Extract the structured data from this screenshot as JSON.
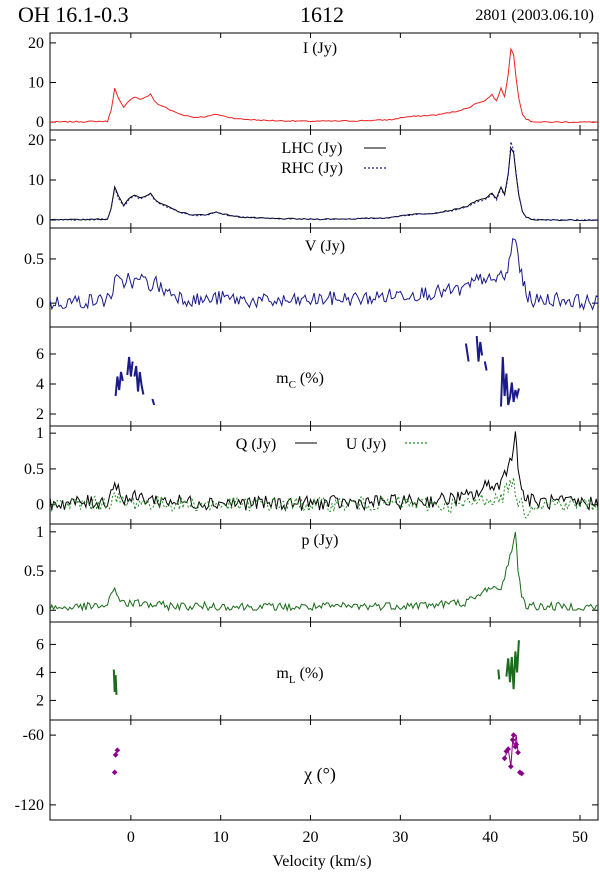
{
  "header": {
    "source": "OH 16.1-0.3",
    "frequency": "1612",
    "observation": "2801 (2003.06.10)"
  },
  "colors": {
    "I": "#ee2222",
    "lhc": "#000000",
    "rhc": "#1a1a8c",
    "V": "#1a1a8c",
    "mC": "#1a1a8c",
    "Q": "#000000",
    "U": "#228b22",
    "p": "#1a6b1a",
    "mL": "#1a6b1a",
    "chi": "#8b008b"
  },
  "chart_data": [
    {
      "type": "line",
      "panel": "I",
      "label": "I (Jy)",
      "xlim": [
        -9,
        52
      ],
      "ylim": [
        -2,
        22.5
      ],
      "yticks": [
        0,
        10,
        20
      ],
      "series": [
        {
          "key": "I",
          "x": [
            -9,
            -2.6,
            -2.2,
            -1.8,
            -1.4,
            -0.8,
            -0.2,
            0.4,
            1.0,
            1.6,
            2.2,
            2.6,
            3.0,
            3.6,
            4.4,
            5.5,
            7,
            8.5,
            9.5,
            10.5,
            12,
            15,
            20,
            25,
            29,
            30.5,
            32,
            34,
            36,
            37.5,
            38.5,
            39.5,
            40.2,
            40.7,
            41.2,
            41.6,
            42.0,
            42.3,
            42.6,
            42.9,
            43.2,
            43.6,
            44.0,
            44.5,
            45.5,
            52
          ],
          "y": [
            0,
            0.2,
            3,
            8.5,
            6,
            3.6,
            5.5,
            6.4,
            5.8,
            6.2,
            7,
            5.5,
            4.5,
            4,
            3,
            2,
            1.2,
            1.4,
            2,
            1.4,
            0.8,
            0.4,
            0.2,
            0.3,
            0.6,
            1.3,
            1.5,
            1.8,
            2.6,
            3.5,
            4.8,
            5.5,
            7,
            5.3,
            8.5,
            6.5,
            12,
            18.5,
            17,
            11,
            6,
            2,
            0.8,
            0.2,
            0,
            0
          ]
        }
      ]
    },
    {
      "type": "line",
      "panel": "LHC/RHC",
      "labels": [
        "LHC (Jy)",
        "RHC (Jy)"
      ],
      "xlim": [
        -9,
        52
      ],
      "ylim": [
        -2,
        22.5
      ],
      "yticks": [
        0,
        10,
        20
      ],
      "series": [
        {
          "name": "LHC (Jy)",
          "key": "lhc",
          "x": [
            -9,
            -2.6,
            -2.2,
            -1.8,
            -1.4,
            -0.8,
            -0.2,
            0.4,
            1.0,
            1.6,
            2.2,
            2.6,
            3.0,
            3.6,
            4.4,
            5.5,
            7,
            8.5,
            9.5,
            10.5,
            12,
            15,
            20,
            25,
            29,
            30.5,
            32,
            34,
            36,
            37.5,
            38.5,
            39.5,
            40.2,
            40.7,
            41.2,
            41.6,
            42.0,
            42.3,
            42.6,
            42.9,
            43.2,
            43.6,
            44.0,
            44.5,
            45.5,
            52
          ],
          "y": [
            0,
            0.2,
            3,
            8.3,
            6,
            3.6,
            5.4,
            6.3,
            5.6,
            6.0,
            6.8,
            5.4,
            4.4,
            3.9,
            3,
            2,
            1.2,
            1.4,
            2,
            1.4,
            0.8,
            0.4,
            0.2,
            0.3,
            0.6,
            1.3,
            1.5,
            1.8,
            2.6,
            3.5,
            4.8,
            5.4,
            6.8,
            5.2,
            8.3,
            6.4,
            11.5,
            18,
            16.8,
            11,
            6,
            2,
            0.8,
            0.2,
            0,
            0
          ]
        },
        {
          "name": "RHC (Jy)",
          "key": "rhc",
          "x": [
            -9,
            -2.6,
            -2.2,
            -1.8,
            -1.4,
            -0.8,
            -0.2,
            0.4,
            1.0,
            1.6,
            2.2,
            2.6,
            3.0,
            3.6,
            4.4,
            5.5,
            7,
            8.5,
            9.5,
            10.5,
            12,
            15,
            20,
            25,
            29,
            30.5,
            32,
            34,
            36,
            37.5,
            38.5,
            39.5,
            40.2,
            40.7,
            41.2,
            41.6,
            42.0,
            42.3,
            42.6,
            42.9,
            43.2,
            43.6,
            44.0,
            44.5,
            45.5,
            52
          ],
          "y": [
            0,
            0.2,
            2.8,
            7.8,
            5.6,
            3.4,
            5.1,
            6.0,
            5.3,
            5.8,
            6.6,
            5.2,
            4.2,
            3.8,
            2.9,
            1.9,
            1.1,
            1.3,
            1.9,
            1.3,
            0.8,
            0.4,
            0.2,
            0.3,
            0.6,
            1.2,
            1.4,
            1.7,
            2.5,
            3.3,
            4.5,
            5.1,
            6.4,
            5.0,
            7.9,
            6.1,
            11,
            19.5,
            17.5,
            11.5,
            6.2,
            2.1,
            0.8,
            0.2,
            0,
            0
          ]
        }
      ]
    },
    {
      "type": "line",
      "panel": "V",
      "label": "V (Jy)",
      "xlim": [
        -9,
        52
      ],
      "ylim": [
        -0.27,
        0.85
      ],
      "yticks": [
        0,
        0.5
      ],
      "series": [
        {
          "key": "V",
          "x": [
            -9,
            -6,
            -3,
            -2.2,
            -1.6,
            -1,
            -0.3,
            0.4,
            1.2,
            2,
            2.8,
            3.5,
            4.5,
            6,
            8,
            10,
            14,
            18,
            22,
            26,
            30,
            34,
            37,
            38.5,
            39.5,
            40.3,
            41,
            41.6,
            42.1,
            42.5,
            42.8,
            43.1,
            43.5,
            44,
            45,
            47,
            52
          ],
          "y": [
            0,
            0.02,
            0.03,
            0.1,
            0.27,
            0.2,
            0.3,
            0.22,
            0.28,
            0.2,
            0.23,
            0.15,
            0.12,
            0.05,
            0.03,
            0.06,
            0.02,
            0.02,
            0.05,
            0.05,
            0.1,
            0.12,
            0.15,
            0.25,
            0.3,
            0.2,
            0.35,
            0.25,
            0.45,
            0.7,
            0.72,
            0.55,
            0.3,
            0.1,
            0.02,
            0.05,
            0
          ]
        }
      ]
    },
    {
      "type": "line",
      "panel": "mC",
      "label": "mC (%)",
      "xlim": [
        -9,
        52
      ],
      "ylim": [
        1.2,
        7.8
      ],
      "yticks": [
        2,
        4,
        6
      ],
      "series": [
        {
          "key": "mC",
          "segments": [
            {
              "x": [
                -1.7,
                -1.5,
                -1.3,
                -1.1,
                -0.9
              ],
              "y": [
                3.2,
                4.5,
                3.6,
                4.8,
                4.2
              ]
            },
            {
              "x": [
                -0.4,
                -0.2,
                0.0,
                0.2
              ],
              "y": [
                4.6,
                5.8,
                4.5,
                5.5
              ]
            },
            {
              "x": [
                0.4,
                0.6,
                0.8,
                1.0,
                1.2,
                1.4
              ],
              "y": [
                4.5,
                5.2,
                3.5,
                4.8,
                3.9,
                3.3
              ]
            },
            {
              "x": [
                2.4,
                2.6
              ],
              "y": [
                3.0,
                2.6
              ]
            },
            {
              "x": [
                37.3,
                37.6
              ],
              "y": [
                6.7,
                5.5
              ]
            },
            {
              "x": [
                38.5,
                38.7,
                38.9,
                39.1
              ],
              "y": [
                7.2,
                5.5,
                6.8,
                5.9
              ]
            },
            {
              "x": [
                39.4,
                39.6
              ],
              "y": [
                5.5,
                4.9
              ]
            },
            {
              "x": [
                41.2,
                41.4,
                41.6,
                41.8,
                42.0,
                42.2,
                42.4,
                42.6,
                42.8,
                43.0,
                43.2
              ],
              "y": [
                2.5,
                5.8,
                3.2,
                4.7,
                2.6,
                3.1,
                4.1,
                2.8,
                3.6,
                3.2,
                3.7
              ]
            }
          ]
        }
      ]
    },
    {
      "type": "line",
      "panel": "Q/U",
      "labels": [
        "Q (Jy)",
        "U (Jy)"
      ],
      "xlim": [
        -9,
        52
      ],
      "ylim": [
        -0.27,
        1.1
      ],
      "yticks": [
        0,
        0.5,
        1
      ],
      "series": [
        {
          "name": "Q (Jy)",
          "key": "Q",
          "x": [
            -9,
            -5,
            -2.6,
            -1.8,
            -1.2,
            -0.5,
            1,
            3,
            6,
            10,
            15,
            20,
            25,
            30,
            34,
            37,
            38.5,
            40,
            41,
            41.8,
            42.4,
            42.8,
            43.1,
            43.5,
            44,
            45,
            52
          ],
          "y": [
            0.02,
            0.03,
            0.05,
            0.32,
            0.15,
            0.08,
            0.1,
            0.06,
            0.04,
            0.03,
            0.02,
            0.02,
            0.03,
            0.04,
            0.06,
            0.1,
            0.15,
            0.3,
            0.25,
            0.5,
            0.72,
            0.95,
            0.6,
            0.2,
            0.08,
            0.04,
            0.02
          ]
        },
        {
          "name": "U (Jy)",
          "key": "U",
          "x": [
            -9,
            -5,
            -2.6,
            -1.8,
            -1.2,
            -0.5,
            1,
            3,
            6,
            10,
            15,
            20,
            25,
            30,
            34,
            37,
            38.5,
            40,
            41,
            41.8,
            42.4,
            42.8,
            43.1,
            43.5,
            44,
            45,
            52
          ],
          "y": [
            0.0,
            0.01,
            0.02,
            0.1,
            0.05,
            0.02,
            0.03,
            0.02,
            0.01,
            0.0,
            0.01,
            0.0,
            0.01,
            0.02,
            0.0,
            -0.02,
            0.05,
            0.1,
            0.05,
            0.2,
            0.35,
            0.2,
            0.05,
            0.0,
            -0.1,
            0.02,
            0.0
          ]
        }
      ]
    },
    {
      "type": "line",
      "panel": "p",
      "label": "p (Jy)",
      "xlim": [
        -9,
        52
      ],
      "ylim": [
        -0.15,
        1.1
      ],
      "yticks": [
        0,
        0.5,
        1
      ],
      "series": [
        {
          "key": "p",
          "x": [
            -9,
            -5,
            -2.6,
            -1.8,
            -1.2,
            -0.5,
            1,
            3,
            6,
            10,
            15,
            20,
            25,
            30,
            34,
            37,
            38.5,
            40,
            41,
            41.8,
            42.4,
            42.8,
            43.1,
            43.5,
            44,
            45,
            52
          ],
          "y": [
            0.03,
            0.04,
            0.06,
            0.28,
            0.14,
            0.08,
            0.09,
            0.06,
            0.05,
            0.05,
            0.04,
            0.04,
            0.05,
            0.06,
            0.07,
            0.1,
            0.15,
            0.32,
            0.22,
            0.52,
            0.78,
            0.95,
            0.55,
            0.2,
            0.06,
            0.05,
            0.04
          ]
        }
      ]
    },
    {
      "type": "line",
      "panel": "mL",
      "label": "mL (%)",
      "xlim": [
        -9,
        52
      ],
      "ylim": [
        0.6,
        7.6
      ],
      "yticks": [
        2,
        4,
        6
      ],
      "series": [
        {
          "key": "mL",
          "segments": [
            {
              "x": [
                -1.9,
                -1.8,
                -1.7,
                -1.6
              ],
              "y": [
                4.2,
                2.6,
                3.8,
                2.4
              ]
            },
            {
              "x": [
                40.9,
                41.0
              ],
              "y": [
                4.2,
                3.5
              ]
            },
            {
              "x": [
                41.8,
                42.0,
                42.2,
                42.4,
                42.6,
                42.8,
                43.0,
                43.2
              ],
              "y": [
                3.7,
                5.0,
                3.3,
                5.1,
                2.8,
                5.5,
                4.0,
                6.3
              ]
            }
          ]
        }
      ]
    },
    {
      "type": "scatter",
      "panel": "chi",
      "label": "χ (°)",
      "xlim": [
        -9,
        52
      ],
      "ylim": [
        -133,
        -47
      ],
      "yticks": [
        -60,
        -120
      ],
      "series": [
        {
          "key": "chi",
          "connected": [
            {
              "x": [
                -1.7,
                -1.5
              ],
              "y": [
                -77,
                -73
              ]
            },
            {
              "x": [
                41.6,
                42.0,
                42.3,
                42.5,
                42.7,
                42.9,
                43.1
              ],
              "y": [
                -80,
                -72,
                -87,
                -64,
                -70,
                -60,
                -75
              ]
            }
          ],
          "points": {
            "x": [
              -1.8,
              -1.7,
              -1.5,
              41.6,
              41.8,
              42.0,
              42.3,
              42.5,
              42.6,
              42.8,
              42.9,
              43.1,
              43.3,
              43.5
            ],
            "y": [
              -92,
              -77,
              -73,
              -80,
              -74,
              -72,
              -87,
              -64,
              -60,
              -70,
              -68,
              -75,
              -92,
              -93
            ]
          }
        }
      ]
    }
  ],
  "xaxis": {
    "label": "Velocity (km/s)",
    "ticks": [
      0,
      10,
      20,
      30,
      40,
      50
    ]
  }
}
